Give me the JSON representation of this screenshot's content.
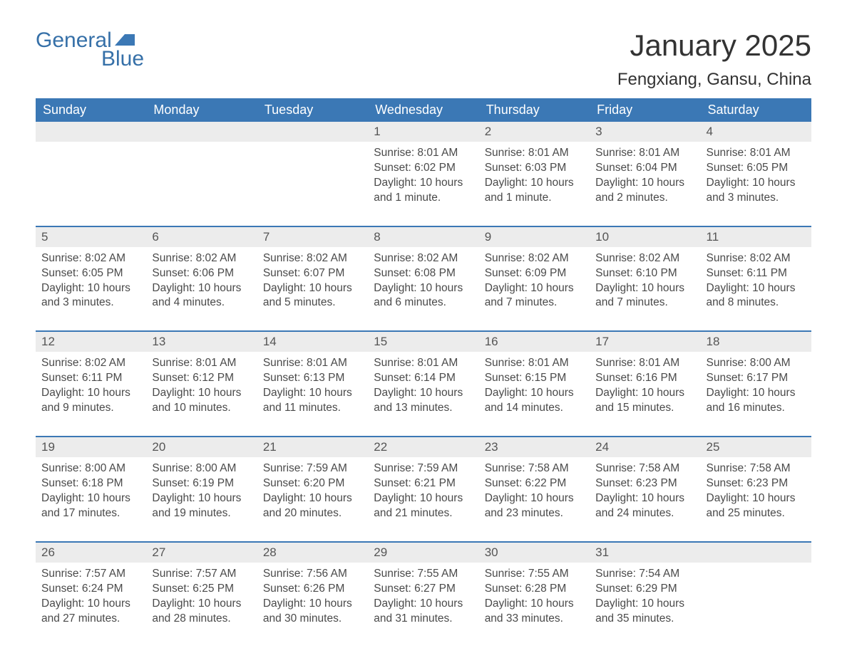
{
  "logo": {
    "text1": "General",
    "text2": "Blue",
    "flag_color": "#3b78b5"
  },
  "title": "January 2025",
  "location": "Fengxiang, Gansu, China",
  "colors": {
    "header_bg": "#3b78b5",
    "header_text": "#ffffff",
    "daynum_bg": "#ececec",
    "week_border": "#3b78b5",
    "text": "#4a4a4a"
  },
  "days_of_week": [
    "Sunday",
    "Monday",
    "Tuesday",
    "Wednesday",
    "Thursday",
    "Friday",
    "Saturday"
  ],
  "weeks": [
    [
      {
        "n": "",
        "empty": true
      },
      {
        "n": "",
        "empty": true
      },
      {
        "n": "",
        "empty": true
      },
      {
        "n": "1",
        "sunrise": "Sunrise: 8:01 AM",
        "sunset": "Sunset: 6:02 PM",
        "day1": "Daylight: 10 hours",
        "day2": "and 1 minute."
      },
      {
        "n": "2",
        "sunrise": "Sunrise: 8:01 AM",
        "sunset": "Sunset: 6:03 PM",
        "day1": "Daylight: 10 hours",
        "day2": "and 1 minute."
      },
      {
        "n": "3",
        "sunrise": "Sunrise: 8:01 AM",
        "sunset": "Sunset: 6:04 PM",
        "day1": "Daylight: 10 hours",
        "day2": "and 2 minutes."
      },
      {
        "n": "4",
        "sunrise": "Sunrise: 8:01 AM",
        "sunset": "Sunset: 6:05 PM",
        "day1": "Daylight: 10 hours",
        "day2": "and 3 minutes."
      }
    ],
    [
      {
        "n": "5",
        "sunrise": "Sunrise: 8:02 AM",
        "sunset": "Sunset: 6:05 PM",
        "day1": "Daylight: 10 hours",
        "day2": "and 3 minutes."
      },
      {
        "n": "6",
        "sunrise": "Sunrise: 8:02 AM",
        "sunset": "Sunset: 6:06 PM",
        "day1": "Daylight: 10 hours",
        "day2": "and 4 minutes."
      },
      {
        "n": "7",
        "sunrise": "Sunrise: 8:02 AM",
        "sunset": "Sunset: 6:07 PM",
        "day1": "Daylight: 10 hours",
        "day2": "and 5 minutes."
      },
      {
        "n": "8",
        "sunrise": "Sunrise: 8:02 AM",
        "sunset": "Sunset: 6:08 PM",
        "day1": "Daylight: 10 hours",
        "day2": "and 6 minutes."
      },
      {
        "n": "9",
        "sunrise": "Sunrise: 8:02 AM",
        "sunset": "Sunset: 6:09 PM",
        "day1": "Daylight: 10 hours",
        "day2": "and 7 minutes."
      },
      {
        "n": "10",
        "sunrise": "Sunrise: 8:02 AM",
        "sunset": "Sunset: 6:10 PM",
        "day1": "Daylight: 10 hours",
        "day2": "and 7 minutes."
      },
      {
        "n": "11",
        "sunrise": "Sunrise: 8:02 AM",
        "sunset": "Sunset: 6:11 PM",
        "day1": "Daylight: 10 hours",
        "day2": "and 8 minutes."
      }
    ],
    [
      {
        "n": "12",
        "sunrise": "Sunrise: 8:02 AM",
        "sunset": "Sunset: 6:11 PM",
        "day1": "Daylight: 10 hours",
        "day2": "and 9 minutes."
      },
      {
        "n": "13",
        "sunrise": "Sunrise: 8:01 AM",
        "sunset": "Sunset: 6:12 PM",
        "day1": "Daylight: 10 hours",
        "day2": "and 10 minutes."
      },
      {
        "n": "14",
        "sunrise": "Sunrise: 8:01 AM",
        "sunset": "Sunset: 6:13 PM",
        "day1": "Daylight: 10 hours",
        "day2": "and 11 minutes."
      },
      {
        "n": "15",
        "sunrise": "Sunrise: 8:01 AM",
        "sunset": "Sunset: 6:14 PM",
        "day1": "Daylight: 10 hours",
        "day2": "and 13 minutes."
      },
      {
        "n": "16",
        "sunrise": "Sunrise: 8:01 AM",
        "sunset": "Sunset: 6:15 PM",
        "day1": "Daylight: 10 hours",
        "day2": "and 14 minutes."
      },
      {
        "n": "17",
        "sunrise": "Sunrise: 8:01 AM",
        "sunset": "Sunset: 6:16 PM",
        "day1": "Daylight: 10 hours",
        "day2": "and 15 minutes."
      },
      {
        "n": "18",
        "sunrise": "Sunrise: 8:00 AM",
        "sunset": "Sunset: 6:17 PM",
        "day1": "Daylight: 10 hours",
        "day2": "and 16 minutes."
      }
    ],
    [
      {
        "n": "19",
        "sunrise": "Sunrise: 8:00 AM",
        "sunset": "Sunset: 6:18 PM",
        "day1": "Daylight: 10 hours",
        "day2": "and 17 minutes."
      },
      {
        "n": "20",
        "sunrise": "Sunrise: 8:00 AM",
        "sunset": "Sunset: 6:19 PM",
        "day1": "Daylight: 10 hours",
        "day2": "and 19 minutes."
      },
      {
        "n": "21",
        "sunrise": "Sunrise: 7:59 AM",
        "sunset": "Sunset: 6:20 PM",
        "day1": "Daylight: 10 hours",
        "day2": "and 20 minutes."
      },
      {
        "n": "22",
        "sunrise": "Sunrise: 7:59 AM",
        "sunset": "Sunset: 6:21 PM",
        "day1": "Daylight: 10 hours",
        "day2": "and 21 minutes."
      },
      {
        "n": "23",
        "sunrise": "Sunrise: 7:58 AM",
        "sunset": "Sunset: 6:22 PM",
        "day1": "Daylight: 10 hours",
        "day2": "and 23 minutes."
      },
      {
        "n": "24",
        "sunrise": "Sunrise: 7:58 AM",
        "sunset": "Sunset: 6:23 PM",
        "day1": "Daylight: 10 hours",
        "day2": "and 24 minutes."
      },
      {
        "n": "25",
        "sunrise": "Sunrise: 7:58 AM",
        "sunset": "Sunset: 6:23 PM",
        "day1": "Daylight: 10 hours",
        "day2": "and 25 minutes."
      }
    ],
    [
      {
        "n": "26",
        "sunrise": "Sunrise: 7:57 AM",
        "sunset": "Sunset: 6:24 PM",
        "day1": "Daylight: 10 hours",
        "day2": "and 27 minutes."
      },
      {
        "n": "27",
        "sunrise": "Sunrise: 7:57 AM",
        "sunset": "Sunset: 6:25 PM",
        "day1": "Daylight: 10 hours",
        "day2": "and 28 minutes."
      },
      {
        "n": "28",
        "sunrise": "Sunrise: 7:56 AM",
        "sunset": "Sunset: 6:26 PM",
        "day1": "Daylight: 10 hours",
        "day2": "and 30 minutes."
      },
      {
        "n": "29",
        "sunrise": "Sunrise: 7:55 AM",
        "sunset": "Sunset: 6:27 PM",
        "day1": "Daylight: 10 hours",
        "day2": "and 31 minutes."
      },
      {
        "n": "30",
        "sunrise": "Sunrise: 7:55 AM",
        "sunset": "Sunset: 6:28 PM",
        "day1": "Daylight: 10 hours",
        "day2": "and 33 minutes."
      },
      {
        "n": "31",
        "sunrise": "Sunrise: 7:54 AM",
        "sunset": "Sunset: 6:29 PM",
        "day1": "Daylight: 10 hours",
        "day2": "and 35 minutes."
      },
      {
        "n": "",
        "empty": true
      }
    ]
  ]
}
